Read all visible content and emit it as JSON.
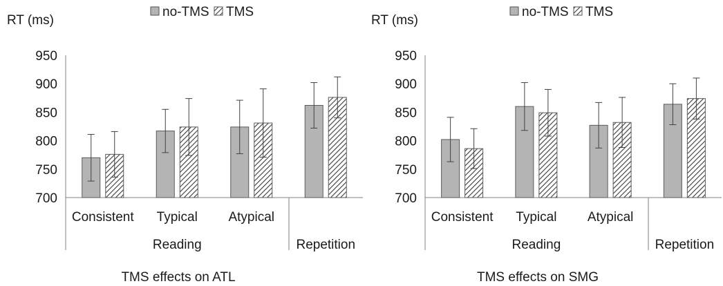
{
  "chart_data": [
    {
      "type": "bar",
      "title": "TMS effects on ATL",
      "ylabel": "RT (ms)",
      "ylim": [
        700,
        950
      ],
      "yticks": [
        700,
        750,
        800,
        850,
        900,
        950
      ],
      "categories": [
        "Consistent",
        "Typical",
        "Atypical",
        "Repetition"
      ],
      "groups": [
        {
          "label": "Reading",
          "categories": [
            "Consistent",
            "Typical",
            "Atypical"
          ]
        },
        {
          "label": "",
          "categories": [
            "Repetition"
          ]
        }
      ],
      "series": [
        {
          "name": "no-TMS",
          "values": [
            770,
            817,
            824,
            862
          ],
          "errors": [
            41,
            38,
            47,
            40
          ]
        },
        {
          "name": "TMS",
          "values": [
            776,
            824,
            831,
            876
          ],
          "errors": [
            40,
            50,
            60,
            36
          ]
        }
      ],
      "legend_position": "top",
      "grid": false
    },
    {
      "type": "bar",
      "title": "TMS effects on SMG",
      "ylabel": "RT (ms)",
      "ylim": [
        700,
        950
      ],
      "yticks": [
        700,
        750,
        800,
        850,
        900,
        950
      ],
      "categories": [
        "Consistent",
        "Typical",
        "Atypical",
        "Repetition"
      ],
      "groups": [
        {
          "label": "Reading",
          "categories": [
            "Consistent",
            "Typical",
            "Atypical"
          ]
        },
        {
          "label": "",
          "categories": [
            "Repetition"
          ]
        }
      ],
      "series": [
        {
          "name": "no-TMS",
          "values": [
            802,
            860,
            827,
            864
          ],
          "errors": [
            39,
            42,
            40,
            36
          ]
        },
        {
          "name": "TMS",
          "values": [
            786,
            849,
            832,
            874
          ],
          "errors": [
            35,
            41,
            44,
            36
          ]
        }
      ],
      "legend_position": "top",
      "grid": false
    }
  ],
  "colors": {
    "no_tms_fill": "#b4b4b4",
    "tms_hatch": "#3a3a3a",
    "axis": "#808080",
    "error_bar": "#404040"
  }
}
